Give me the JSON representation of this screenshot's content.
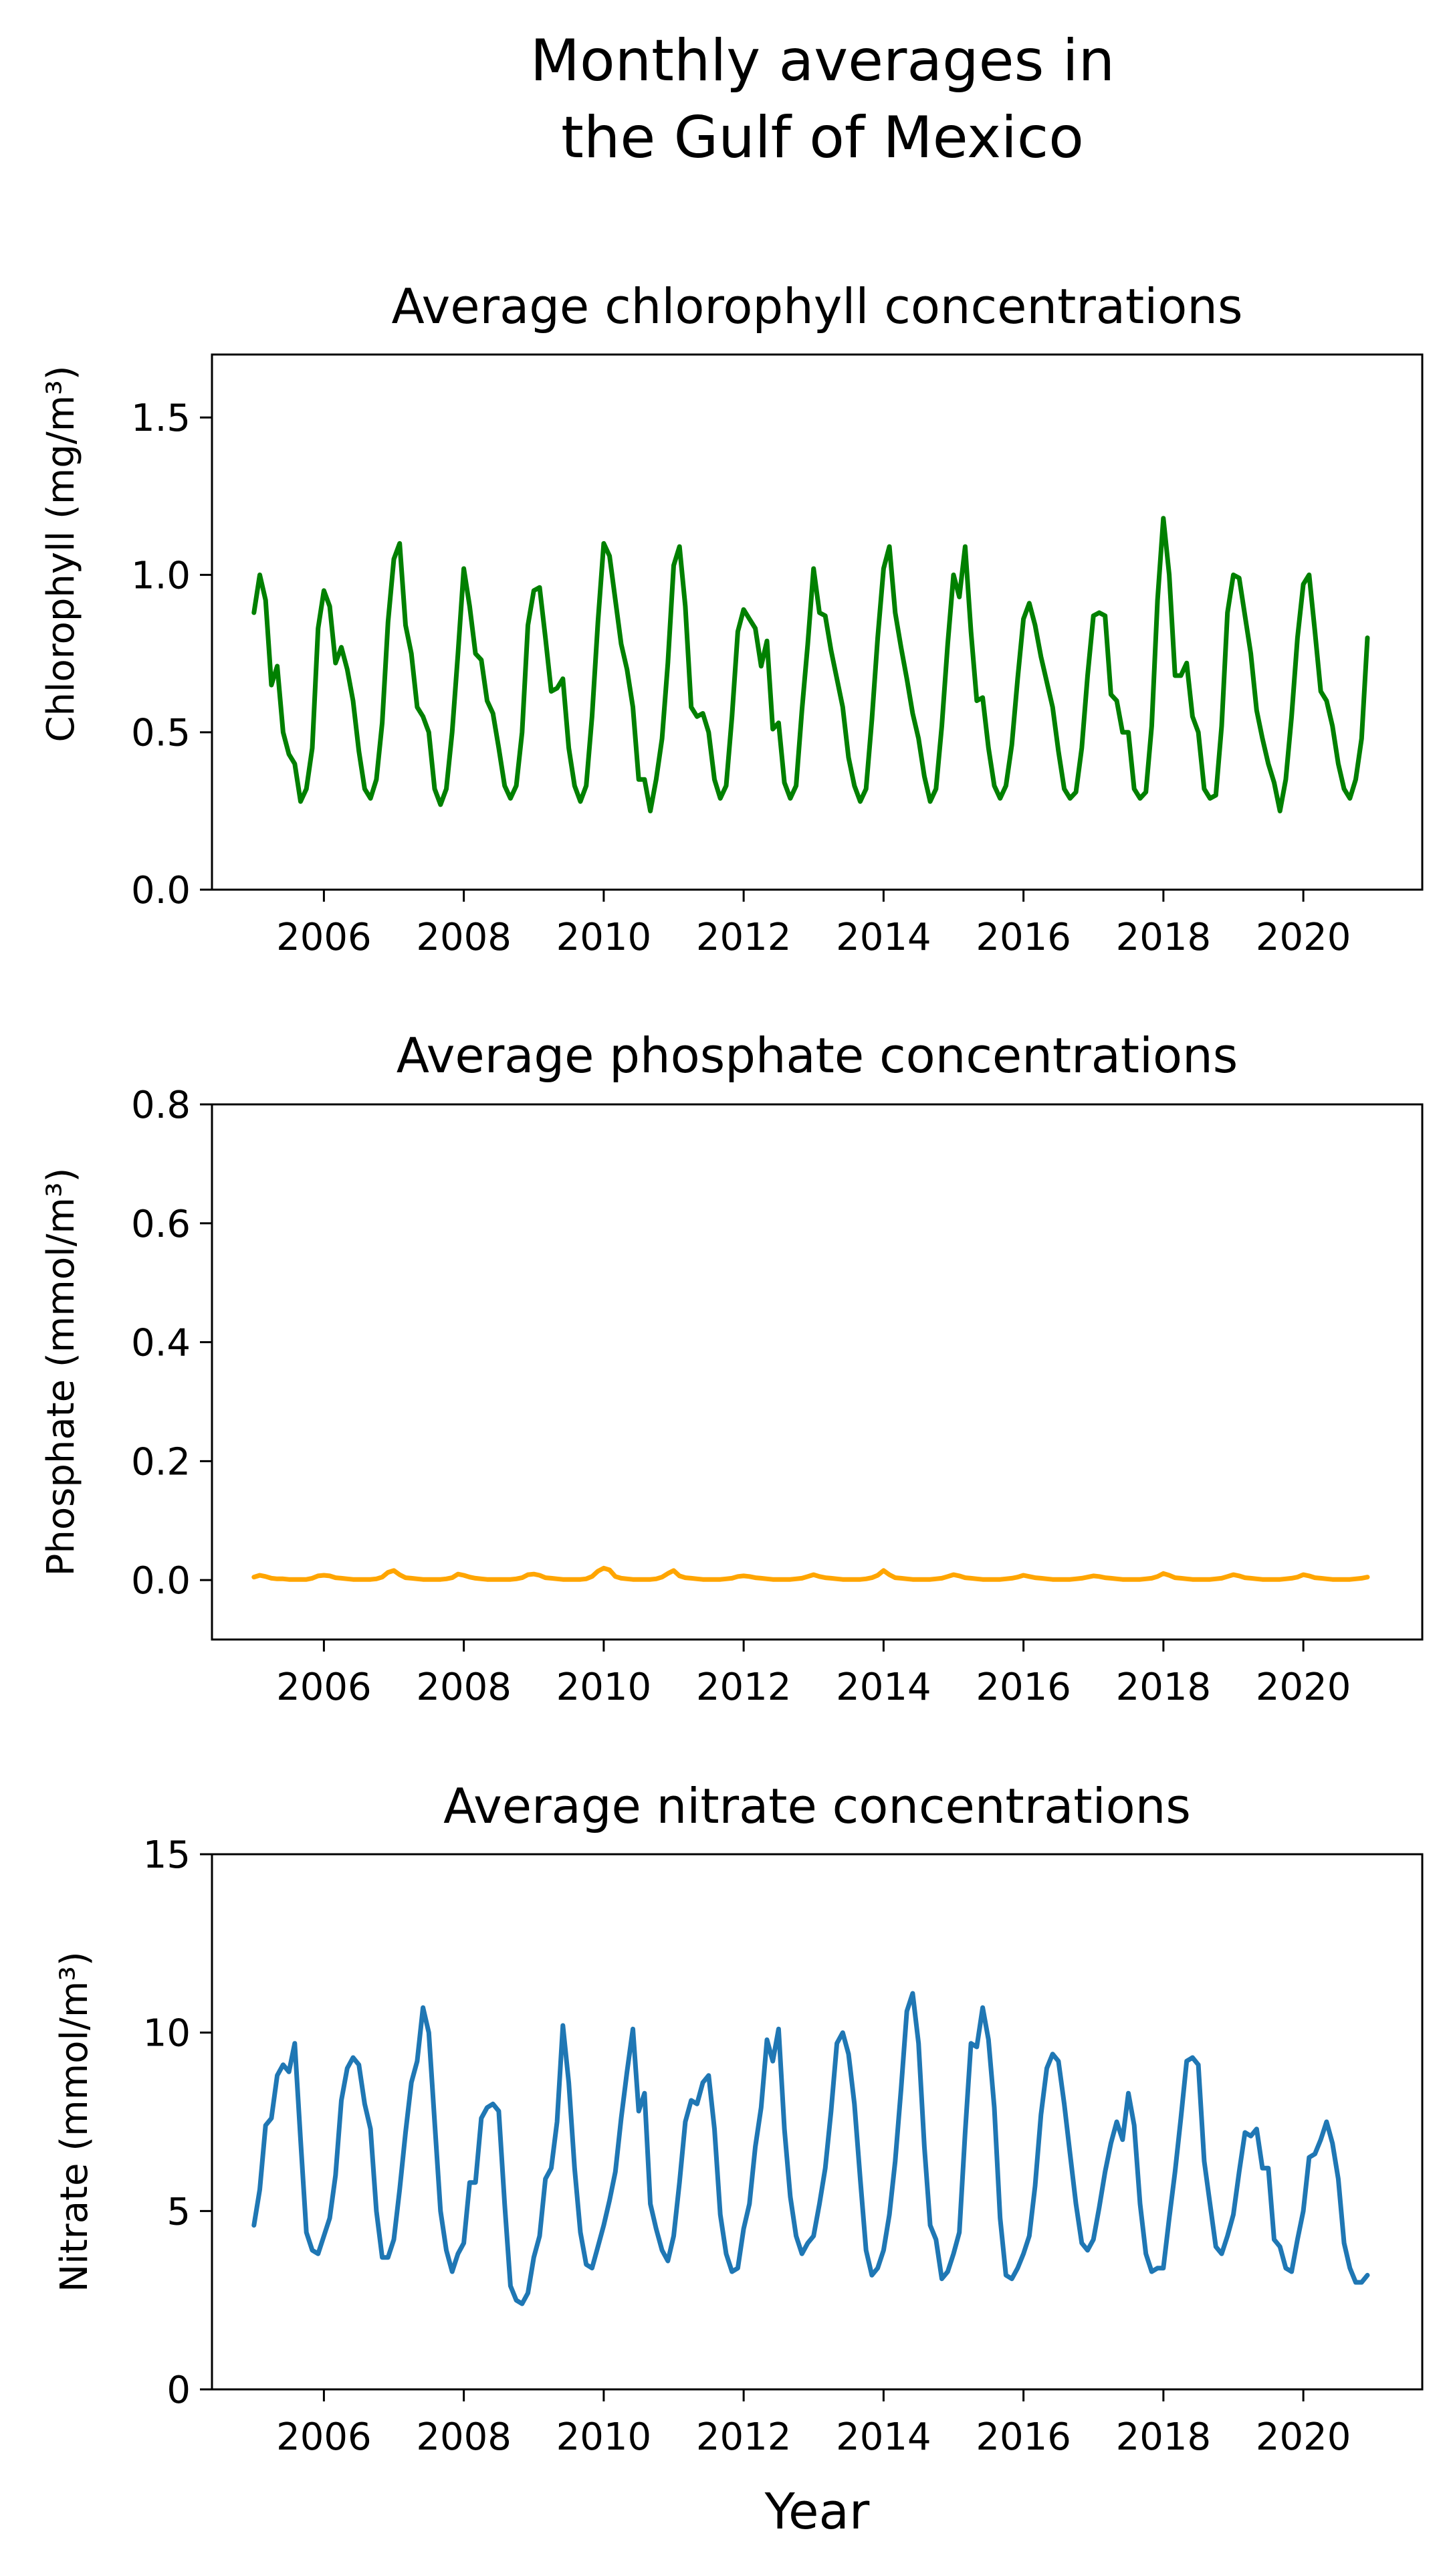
{
  "figure": {
    "title_line1": "Monthly averages in",
    "title_line2": "the Gulf of Mexico",
    "xlabel": "Year"
  },
  "chart_data": [
    {
      "type": "line",
      "title": "Average chlorophyll concentrations",
      "ylabel": "Chlorophyll (mg/m³)",
      "xlabel": "",
      "xlim": [
        2004.4,
        2021.7
      ],
      "ylim": [
        0,
        1.7
      ],
      "xticks": [
        2006,
        2008,
        2010,
        2012,
        2014,
        2016,
        2018,
        2020
      ],
      "yticks": [
        0.0,
        0.5,
        1.0,
        1.5
      ],
      "ytick_labels": [
        "0.0",
        "0.5",
        "1.0",
        "1.5"
      ],
      "color": "#008000",
      "series": [
        {
          "x_start": 2005.0,
          "x_step": 0.08333,
          "values": [
            0.88,
            1.0,
            0.92,
            0.65,
            0.71,
            0.5,
            0.43,
            0.4,
            0.28,
            0.32,
            0.45,
            0.83,
            0.95,
            0.9,
            0.72,
            0.77,
            0.7,
            0.6,
            0.44,
            0.32,
            0.29,
            0.35,
            0.53,
            0.85,
            1.05,
            1.1,
            0.84,
            0.75,
            0.58,
            0.55,
            0.5,
            0.32,
            0.27,
            0.32,
            0.5,
            0.75,
            1.02,
            0.9,
            0.75,
            0.73,
            0.6,
            0.56,
            0.45,
            0.33,
            0.29,
            0.33,
            0.5,
            0.84,
            0.95,
            0.96,
            0.8,
            0.63,
            0.64,
            0.67,
            0.45,
            0.33,
            0.28,
            0.33,
            0.55,
            0.85,
            1.1,
            1.06,
            0.92,
            0.78,
            0.7,
            0.58,
            0.35,
            0.35,
            0.25,
            0.35,
            0.48,
            0.72,
            1.03,
            1.09,
            0.9,
            0.58,
            0.55,
            0.56,
            0.5,
            0.35,
            0.29,
            0.33,
            0.55,
            0.82,
            0.89,
            0.86,
            0.83,
            0.71,
            0.79,
            0.51,
            0.53,
            0.34,
            0.29,
            0.33,
            0.57,
            0.78,
            1.02,
            0.88,
            0.87,
            0.76,
            0.67,
            0.58,
            0.42,
            0.33,
            0.28,
            0.32,
            0.54,
            0.8,
            1.02,
            1.09,
            0.88,
            0.77,
            0.67,
            0.56,
            0.48,
            0.36,
            0.28,
            0.32,
            0.52,
            0.78,
            1.0,
            0.93,
            1.09,
            0.82,
            0.6,
            0.61,
            0.45,
            0.33,
            0.29,
            0.33,
            0.46,
            0.67,
            0.86,
            0.91,
            0.84,
            0.74,
            0.66,
            0.58,
            0.44,
            0.32,
            0.29,
            0.31,
            0.45,
            0.68,
            0.87,
            0.88,
            0.87,
            0.62,
            0.6,
            0.5,
            0.5,
            0.32,
            0.29,
            0.31,
            0.52,
            0.92,
            1.18,
            1.0,
            0.68,
            0.68,
            0.72,
            0.55,
            0.5,
            0.32,
            0.29,
            0.3,
            0.52,
            0.88,
            1.0,
            0.99,
            0.87,
            0.75,
            0.57,
            0.48,
            0.4,
            0.34,
            0.25,
            0.35,
            0.55,
            0.8,
            0.97,
            1.0,
            0.82,
            0.63,
            0.6,
            0.52,
            0.4,
            0.32,
            0.29,
            0.35,
            0.48,
            0.8
          ]
        }
      ]
    },
    {
      "type": "line",
      "title": "Average phosphate concentrations",
      "ylabel": "Phosphate (mmol/m³)",
      "xlabel": "",
      "xlim": [
        2004.4,
        2021.7
      ],
      "ylim": [
        -0.1,
        0.8
      ],
      "xticks": [
        2006,
        2008,
        2010,
        2012,
        2014,
        2016,
        2018,
        2020
      ],
      "yticks": [
        0.0,
        0.2,
        0.4,
        0.6,
        0.8
      ],
      "ytick_labels": [
        "0.0",
        "0.2",
        "0.4",
        "0.6",
        "0.8"
      ],
      "color": "#FFA500",
      "series": [
        {
          "x_start": 2005.0,
          "x_step": 0.08333,
          "values": [
            0.005,
            0.008,
            0.006,
            0.003,
            0.002,
            0.002,
            0.001,
            0.001,
            0.001,
            0.001,
            0.003,
            0.007,
            0.008,
            0.007,
            0.004,
            0.003,
            0.002,
            0.001,
            0.001,
            0.001,
            0.001,
            0.002,
            0.005,
            0.013,
            0.016,
            0.009,
            0.004,
            0.003,
            0.002,
            0.001,
            0.001,
            0.001,
            0.001,
            0.002,
            0.004,
            0.01,
            0.008,
            0.005,
            0.003,
            0.002,
            0.001,
            0.001,
            0.001,
            0.001,
            0.001,
            0.002,
            0.004,
            0.009,
            0.01,
            0.008,
            0.004,
            0.003,
            0.002,
            0.001,
            0.001,
            0.001,
            0.001,
            0.002,
            0.006,
            0.015,
            0.02,
            0.017,
            0.006,
            0.003,
            0.002,
            0.001,
            0.001,
            0.001,
            0.001,
            0.002,
            0.005,
            0.011,
            0.016,
            0.007,
            0.004,
            0.003,
            0.002,
            0.001,
            0.001,
            0.001,
            0.001,
            0.002,
            0.003,
            0.006,
            0.007,
            0.006,
            0.004,
            0.003,
            0.002,
            0.001,
            0.001,
            0.001,
            0.001,
            0.002,
            0.003,
            0.006,
            0.009,
            0.006,
            0.004,
            0.003,
            0.002,
            0.001,
            0.001,
            0.001,
            0.001,
            0.002,
            0.004,
            0.008,
            0.016,
            0.009,
            0.004,
            0.003,
            0.002,
            0.001,
            0.001,
            0.001,
            0.001,
            0.002,
            0.003,
            0.006,
            0.009,
            0.007,
            0.004,
            0.003,
            0.002,
            0.001,
            0.001,
            0.001,
            0.001,
            0.002,
            0.003,
            0.005,
            0.008,
            0.006,
            0.004,
            0.003,
            0.002,
            0.001,
            0.001,
            0.001,
            0.001,
            0.002,
            0.003,
            0.005,
            0.007,
            0.006,
            0.004,
            0.003,
            0.002,
            0.001,
            0.001,
            0.001,
            0.001,
            0.002,
            0.003,
            0.006,
            0.011,
            0.008,
            0.004,
            0.003,
            0.002,
            0.001,
            0.001,
            0.001,
            0.001,
            0.002,
            0.003,
            0.006,
            0.009,
            0.007,
            0.004,
            0.003,
            0.002,
            0.001,
            0.001,
            0.001,
            0.001,
            0.002,
            0.003,
            0.005,
            0.009,
            0.007,
            0.004,
            0.003,
            0.002,
            0.001,
            0.001,
            0.001,
            0.001,
            0.002,
            0.003,
            0.005
          ]
        }
      ]
    },
    {
      "type": "line",
      "title": "Average nitrate concentrations",
      "ylabel": "Nitrate (mmol/m³)",
      "xlabel": "Year",
      "xlim": [
        2004.4,
        2021.7
      ],
      "ylim": [
        0,
        15
      ],
      "xticks": [
        2006,
        2008,
        2010,
        2012,
        2014,
        2016,
        2018,
        2020
      ],
      "yticks": [
        0,
        5,
        10,
        15
      ],
      "ytick_labels": [
        "0",
        "5",
        "10",
        "15"
      ],
      "color": "#1F77B4",
      "series": [
        {
          "x_start": 2005.0,
          "x_step": 0.08333,
          "values": [
            4.6,
            5.6,
            7.4,
            7.6,
            8.8,
            9.1,
            8.9,
            9.7,
            7.0,
            4.4,
            3.9,
            3.8,
            4.3,
            4.8,
            6.0,
            8.1,
            9.0,
            9.3,
            9.1,
            8.0,
            7.3,
            5.0,
            3.7,
            3.7,
            4.2,
            5.6,
            7.2,
            8.6,
            9.2,
            10.7,
            10.0,
            7.5,
            5.0,
            3.9,
            3.3,
            3.8,
            4.1,
            5.8,
            5.8,
            7.6,
            7.9,
            8.0,
            7.8,
            5.2,
            2.9,
            2.5,
            2.4,
            2.7,
            3.7,
            4.3,
            5.9,
            6.2,
            7.5,
            10.2,
            8.6,
            6.2,
            4.4,
            3.5,
            3.4,
            4.0,
            4.6,
            5.3,
            6.1,
            7.6,
            8.9,
            10.1,
            7.8,
            8.3,
            5.2,
            4.5,
            3.9,
            3.6,
            4.3,
            5.8,
            7.5,
            8.1,
            8.0,
            8.6,
            8.8,
            7.3,
            4.9,
            3.8,
            3.3,
            3.4,
            4.5,
            5.2,
            6.8,
            7.9,
            9.8,
            9.2,
            10.1,
            7.3,
            5.4,
            4.3,
            3.8,
            4.1,
            4.3,
            5.2,
            6.2,
            7.8,
            9.7,
            10.0,
            9.4,
            8.0,
            5.9,
            3.9,
            3.2,
            3.4,
            3.9,
            4.9,
            6.4,
            8.4,
            10.6,
            11.1,
            9.7,
            6.8,
            4.6,
            4.2,
            3.1,
            3.3,
            3.8,
            4.4,
            7.2,
            9.7,
            9.6,
            10.7,
            9.8,
            7.9,
            4.8,
            3.2,
            3.1,
            3.4,
            3.8,
            4.3,
            5.7,
            7.7,
            9.0,
            9.4,
            9.2,
            8.0,
            6.6,
            5.2,
            4.1,
            3.9,
            4.2,
            5.1,
            6.1,
            6.9,
            7.5,
            7.0,
            8.3,
            7.4,
            5.2,
            3.8,
            3.3,
            3.4,
            3.4,
            4.8,
            6.1,
            7.6,
            9.2,
            9.3,
            9.1,
            6.4,
            5.2,
            4.0,
            3.8,
            4.3,
            4.9,
            6.1,
            7.2,
            7.1,
            7.3,
            6.2,
            6.2,
            4.2,
            4.0,
            3.4,
            3.3,
            4.2,
            5.0,
            6.5,
            6.6,
            7.0,
            7.5,
            6.9,
            5.9,
            4.1,
            3.4,
            3.0,
            3.0,
            3.2
          ]
        }
      ]
    }
  ]
}
